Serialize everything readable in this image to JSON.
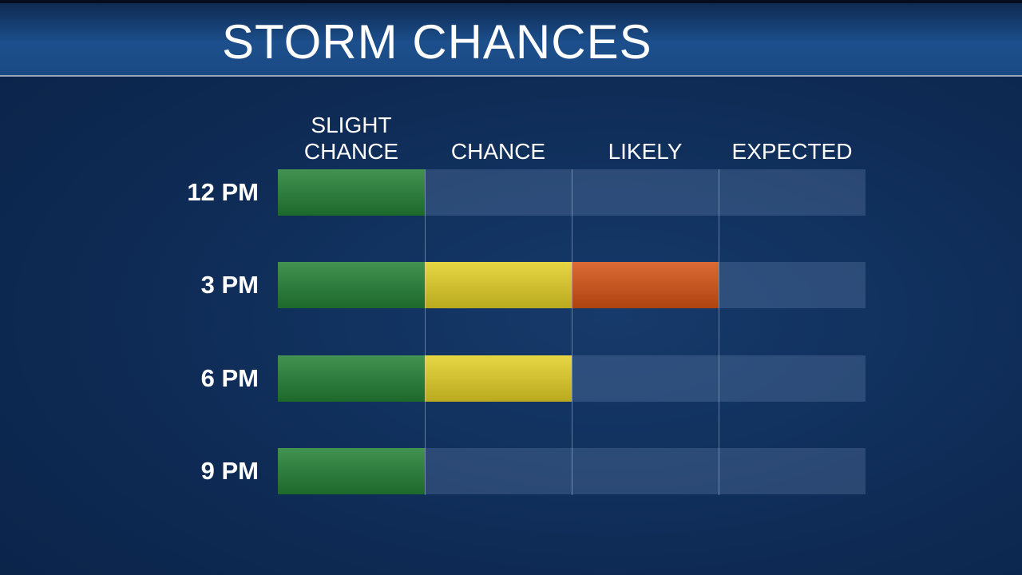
{
  "header": {
    "title": "STORM CHANCES"
  },
  "columns": [
    {
      "label": "SLIGHT CHANCE",
      "color": "#238035"
    },
    {
      "label": "CHANCE",
      "color": "#e3cf25"
    },
    {
      "label": "LIKELY",
      "color": "#d55214"
    },
    {
      "label": "EXPECTED"
    }
  ],
  "rows": [
    {
      "label": "12 PM",
      "level": 1
    },
    {
      "label": "3 PM",
      "level": 3
    },
    {
      "label": "6 PM",
      "level": 2
    },
    {
      "label": "9 PM",
      "level": 1
    }
  ]
}
